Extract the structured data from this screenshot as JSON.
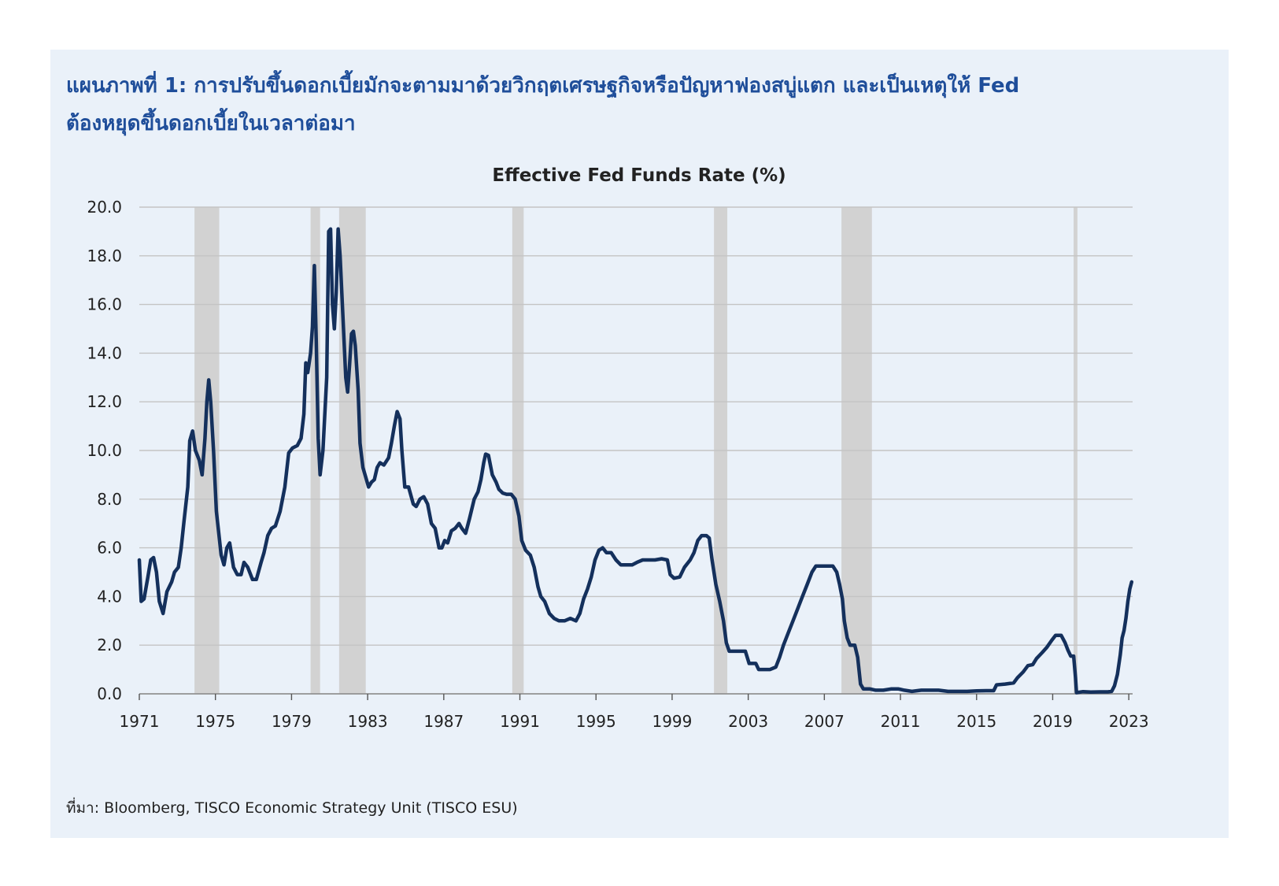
{
  "heading": {
    "line1": "แผนภาพที่ 1: การปรับขึ้นดอกเบี้ยมักจะตามมาด้วยวิกฤตเศรษฐกิจหรือปัญหาฟองสบู่แตก และเป็นเหตุให้ Fed",
    "line2": "ต้องหยุดขึ้นดอกเบี้ยในเวลาต่อมา"
  },
  "source": "ที่มา: Bloomberg, TISCO Economic Strategy Unit (TISCO ESU)",
  "colors": {
    "panel_bg": "#eaf1f9",
    "heading": "#1f4e9a",
    "line": "#14305c",
    "recession": "#d2d2d2",
    "grid": "#c4c4c4"
  },
  "chart_data": {
    "type": "line",
    "title": "Effective Fed Funds Rate (%)",
    "xlabel": "",
    "ylabel": "",
    "ylim": [
      0,
      20
    ],
    "xlim": [
      1971,
      2023.2
    ],
    "grid": true,
    "x_ticks": [
      "1971",
      "1975",
      "1979",
      "1983",
      "1987",
      "1991",
      "1995",
      "1999",
      "2003",
      "2007",
      "2011",
      "2015",
      "2019",
      "2023"
    ],
    "y_ticks": [
      "0.0",
      "2.0",
      "4.0",
      "6.0",
      "8.0",
      "10.0",
      "12.0",
      "14.0",
      "16.0",
      "18.0",
      "20.0"
    ],
    "recessions": [
      [
        1973.9,
        1975.2
      ],
      [
        1980.0,
        1980.5
      ],
      [
        1981.5,
        1982.9
      ],
      [
        1990.6,
        1991.2
      ],
      [
        2001.2,
        2001.9
      ],
      [
        2007.9,
        2009.5
      ],
      [
        2020.1,
        2020.3
      ]
    ],
    "series": [
      {
        "name": "Effective Fed Funds Rate",
        "points": [
          [
            1971.0,
            5.5
          ],
          [
            1971.1,
            3.8
          ],
          [
            1971.25,
            3.9
          ],
          [
            1971.45,
            4.8
          ],
          [
            1971.6,
            5.5
          ],
          [
            1971.75,
            5.6
          ],
          [
            1971.9,
            5.0
          ],
          [
            1972.05,
            3.8
          ],
          [
            1972.25,
            3.3
          ],
          [
            1972.45,
            4.2
          ],
          [
            1972.7,
            4.6
          ],
          [
            1972.85,
            5.0
          ],
          [
            1973.05,
            5.2
          ],
          [
            1973.2,
            6.0
          ],
          [
            1973.35,
            7.1
          ],
          [
            1973.55,
            8.5
          ],
          [
            1973.65,
            10.4
          ],
          [
            1973.8,
            10.8
          ],
          [
            1973.95,
            10.0
          ],
          [
            1974.15,
            9.6
          ],
          [
            1974.3,
            9.0
          ],
          [
            1974.45,
            10.5
          ],
          [
            1974.55,
            12.0
          ],
          [
            1974.65,
            12.9
          ],
          [
            1974.75,
            12.0
          ],
          [
            1974.9,
            10.0
          ],
          [
            1975.05,
            7.5
          ],
          [
            1975.3,
            5.7
          ],
          [
            1975.45,
            5.3
          ],
          [
            1975.6,
            6.0
          ],
          [
            1975.75,
            6.2
          ],
          [
            1975.95,
            5.2
          ],
          [
            1976.15,
            4.9
          ],
          [
            1976.35,
            4.9
          ],
          [
            1976.5,
            5.4
          ],
          [
            1976.7,
            5.2
          ],
          [
            1976.95,
            4.7
          ],
          [
            1977.15,
            4.7
          ],
          [
            1977.4,
            5.4
          ],
          [
            1977.55,
            5.8
          ],
          [
            1977.75,
            6.5
          ],
          [
            1977.95,
            6.8
          ],
          [
            1978.15,
            6.9
          ],
          [
            1978.4,
            7.5
          ],
          [
            1978.65,
            8.5
          ],
          [
            1978.85,
            9.9
          ],
          [
            1979.05,
            10.1
          ],
          [
            1979.3,
            10.2
          ],
          [
            1979.5,
            10.5
          ],
          [
            1979.65,
            11.5
          ],
          [
            1979.75,
            13.6
          ],
          [
            1979.85,
            13.2
          ],
          [
            1980.0,
            14.0
          ],
          [
            1980.1,
            15.1
          ],
          [
            1980.2,
            17.6
          ],
          [
            1980.3,
            14.5
          ],
          [
            1980.4,
            10.5
          ],
          [
            1980.5,
            9.0
          ],
          [
            1980.65,
            10.0
          ],
          [
            1980.85,
            13.0
          ],
          [
            1980.95,
            19.0
          ],
          [
            1981.05,
            19.1
          ],
          [
            1981.15,
            16.0
          ],
          [
            1981.25,
            15.0
          ],
          [
            1981.35,
            16.5
          ],
          [
            1981.45,
            19.1
          ],
          [
            1981.55,
            18.0
          ],
          [
            1981.7,
            15.5
          ],
          [
            1981.85,
            13.0
          ],
          [
            1981.95,
            12.4
          ],
          [
            1982.05,
            13.5
          ],
          [
            1982.15,
            14.8
          ],
          [
            1982.25,
            14.9
          ],
          [
            1982.35,
            14.3
          ],
          [
            1982.5,
            12.5
          ],
          [
            1982.6,
            10.3
          ],
          [
            1982.75,
            9.3
          ],
          [
            1982.9,
            8.9
          ],
          [
            1983.05,
            8.5
          ],
          [
            1983.2,
            8.7
          ],
          [
            1983.35,
            8.8
          ],
          [
            1983.5,
            9.3
          ],
          [
            1983.65,
            9.5
          ],
          [
            1983.85,
            9.4
          ],
          [
            1984.1,
            9.7
          ],
          [
            1984.25,
            10.3
          ],
          [
            1984.4,
            11.0
          ],
          [
            1984.55,
            11.6
          ],
          [
            1984.7,
            11.3
          ],
          [
            1984.8,
            10.0
          ],
          [
            1984.95,
            8.5
          ],
          [
            1985.15,
            8.5
          ],
          [
            1985.4,
            7.8
          ],
          [
            1985.55,
            7.7
          ],
          [
            1985.75,
            8.0
          ],
          [
            1985.95,
            8.1
          ],
          [
            1986.15,
            7.8
          ],
          [
            1986.35,
            7.0
          ],
          [
            1986.55,
            6.8
          ],
          [
            1986.75,
            6.0
          ],
          [
            1986.9,
            6.0
          ],
          [
            1987.05,
            6.3
          ],
          [
            1987.2,
            6.2
          ],
          [
            1987.4,
            6.7
          ],
          [
            1987.6,
            6.8
          ],
          [
            1987.8,
            7.0
          ],
          [
            1987.95,
            6.8
          ],
          [
            1988.15,
            6.6
          ],
          [
            1988.35,
            7.2
          ],
          [
            1988.6,
            8.0
          ],
          [
            1988.8,
            8.3
          ],
          [
            1988.95,
            8.8
          ],
          [
            1989.1,
            9.5
          ],
          [
            1989.2,
            9.85
          ],
          [
            1989.35,
            9.8
          ],
          [
            1989.55,
            9.0
          ],
          [
            1989.75,
            8.7
          ],
          [
            1989.9,
            8.4
          ],
          [
            1990.1,
            8.25
          ],
          [
            1990.3,
            8.2
          ],
          [
            1990.55,
            8.2
          ],
          [
            1990.75,
            8.0
          ],
          [
            1990.95,
            7.3
          ],
          [
            1991.1,
            6.3
          ],
          [
            1991.3,
            5.9
          ],
          [
            1991.55,
            5.7
          ],
          [
            1991.75,
            5.2
          ],
          [
            1991.95,
            4.4
          ],
          [
            1992.1,
            4.0
          ],
          [
            1992.3,
            3.8
          ],
          [
            1992.55,
            3.3
          ],
          [
            1992.8,
            3.1
          ],
          [
            1993.05,
            3.0
          ],
          [
            1993.35,
            3.0
          ],
          [
            1993.65,
            3.1
          ],
          [
            1993.95,
            3.0
          ],
          [
            1994.15,
            3.3
          ],
          [
            1994.35,
            3.9
          ],
          [
            1994.55,
            4.3
          ],
          [
            1994.75,
            4.8
          ],
          [
            1994.95,
            5.5
          ],
          [
            1995.15,
            5.9
          ],
          [
            1995.35,
            6.0
          ],
          [
            1995.55,
            5.8
          ],
          [
            1995.8,
            5.8
          ],
          [
            1996.05,
            5.5
          ],
          [
            1996.3,
            5.3
          ],
          [
            1996.6,
            5.3
          ],
          [
            1996.9,
            5.3
          ],
          [
            1997.15,
            5.4
          ],
          [
            1997.45,
            5.5
          ],
          [
            1997.8,
            5.5
          ],
          [
            1998.1,
            5.5
          ],
          [
            1998.45,
            5.55
          ],
          [
            1998.75,
            5.5
          ],
          [
            1998.9,
            4.9
          ],
          [
            1999.1,
            4.75
          ],
          [
            1999.4,
            4.8
          ],
          [
            1999.65,
            5.2
          ],
          [
            1999.95,
            5.5
          ],
          [
            2000.15,
            5.8
          ],
          [
            2000.35,
            6.3
          ],
          [
            2000.55,
            6.5
          ],
          [
            2000.8,
            6.5
          ],
          [
            2000.95,
            6.4
          ],
          [
            2001.1,
            5.5
          ],
          [
            2001.3,
            4.5
          ],
          [
            2001.5,
            3.8
          ],
          [
            2001.7,
            3.0
          ],
          [
            2001.85,
            2.1
          ],
          [
            2002.0,
            1.75
          ],
          [
            2002.3,
            1.75
          ],
          [
            2002.6,
            1.75
          ],
          [
            2002.85,
            1.75
          ],
          [
            2003.05,
            1.25
          ],
          [
            2003.4,
            1.25
          ],
          [
            2003.55,
            1.0
          ],
          [
            2003.85,
            1.0
          ],
          [
            2004.15,
            1.0
          ],
          [
            2004.45,
            1.1
          ],
          [
            2004.65,
            1.5
          ],
          [
            2004.85,
            2.0
          ],
          [
            2005.1,
            2.5
          ],
          [
            2005.35,
            3.0
          ],
          [
            2005.6,
            3.5
          ],
          [
            2005.85,
            4.0
          ],
          [
            2006.1,
            4.5
          ],
          [
            2006.35,
            5.0
          ],
          [
            2006.55,
            5.25
          ],
          [
            2006.8,
            5.25
          ],
          [
            2007.1,
            5.25
          ],
          [
            2007.45,
            5.25
          ],
          [
            2007.65,
            5.0
          ],
          [
            2007.8,
            4.5
          ],
          [
            2007.95,
            3.9
          ],
          [
            2008.05,
            3.0
          ],
          [
            2008.2,
            2.3
          ],
          [
            2008.35,
            2.0
          ],
          [
            2008.6,
            2.0
          ],
          [
            2008.75,
            1.5
          ],
          [
            2008.9,
            0.4
          ],
          [
            2009.05,
            0.2
          ],
          [
            2009.4,
            0.2
          ],
          [
            2009.7,
            0.15
          ],
          [
            2010.1,
            0.15
          ],
          [
            2010.5,
            0.2
          ],
          [
            2010.9,
            0.2
          ],
          [
            2011.2,
            0.15
          ],
          [
            2011.6,
            0.1
          ],
          [
            2012.1,
            0.15
          ],
          [
            2012.6,
            0.15
          ],
          [
            2013.0,
            0.15
          ],
          [
            2013.5,
            0.1
          ],
          [
            2014.0,
            0.1
          ],
          [
            2014.5,
            0.1
          ],
          [
            2015.0,
            0.12
          ],
          [
            2015.5,
            0.13
          ],
          [
            2015.9,
            0.13
          ],
          [
            2016.05,
            0.37
          ],
          [
            2016.5,
            0.4
          ],
          [
            2016.95,
            0.45
          ],
          [
            2017.15,
            0.66
          ],
          [
            2017.45,
            0.9
          ],
          [
            2017.7,
            1.16
          ],
          [
            2017.95,
            1.2
          ],
          [
            2018.15,
            1.45
          ],
          [
            2018.45,
            1.7
          ],
          [
            2018.7,
            1.92
          ],
          [
            2018.95,
            2.2
          ],
          [
            2019.15,
            2.4
          ],
          [
            2019.45,
            2.4
          ],
          [
            2019.65,
            2.1
          ],
          [
            2019.8,
            1.8
          ],
          [
            2019.95,
            1.55
          ],
          [
            2020.1,
            1.55
          ],
          [
            2020.2,
            0.65
          ],
          [
            2020.25,
            0.05
          ],
          [
            2020.6,
            0.09
          ],
          [
            2021.0,
            0.07
          ],
          [
            2021.5,
            0.08
          ],
          [
            2021.9,
            0.08
          ],
          [
            2022.1,
            0.1
          ],
          [
            2022.25,
            0.33
          ],
          [
            2022.4,
            0.8
          ],
          [
            2022.55,
            1.6
          ],
          [
            2022.65,
            2.3
          ],
          [
            2022.75,
            2.6
          ],
          [
            2022.85,
            3.1
          ],
          [
            2022.95,
            3.8
          ],
          [
            2023.05,
            4.3
          ],
          [
            2023.15,
            4.6
          ]
        ]
      }
    ]
  }
}
